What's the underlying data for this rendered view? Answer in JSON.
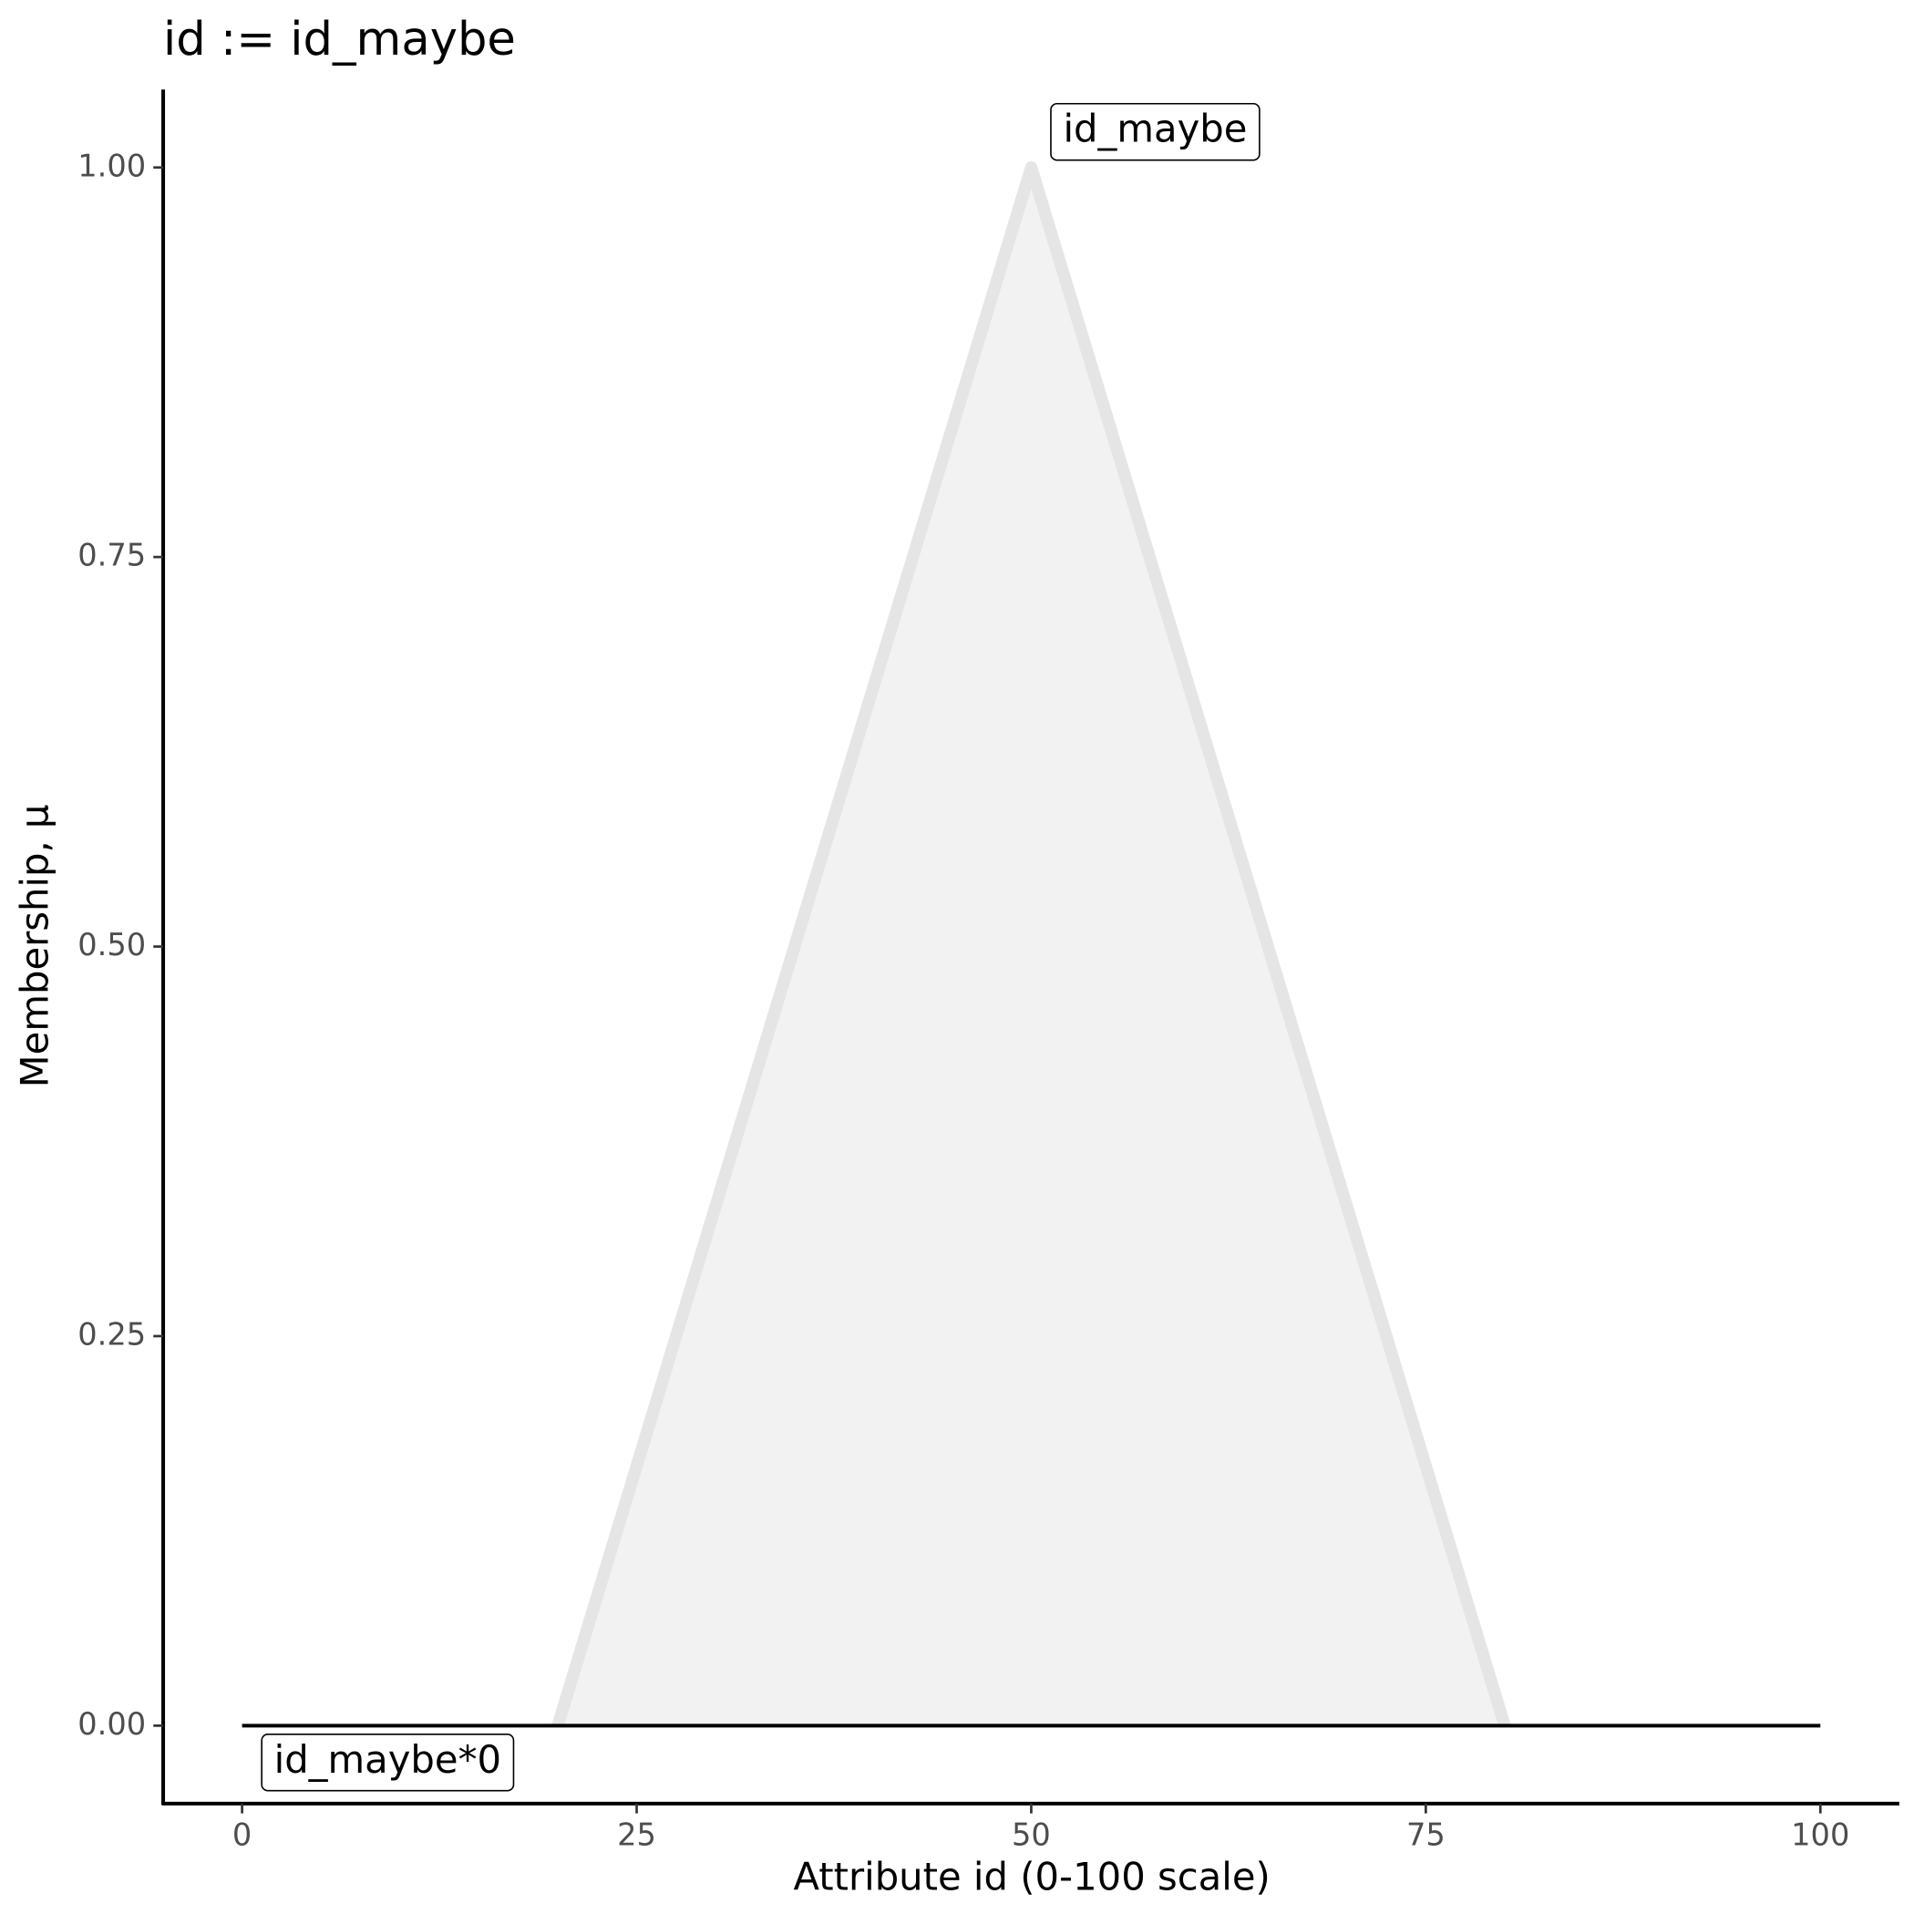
{
  "chart_data": {
    "type": "line",
    "title": "id := id_maybe",
    "x_label": "Attribute id (0-100 scale)",
    "y_label": "Membership, μ",
    "series": [
      {
        "name": "id_maybe",
        "color": "#e5e5e5",
        "fill": "#f2f2f2",
        "x": [
          20,
          50,
          80
        ],
        "values": [
          0,
          1,
          0
        ]
      },
      {
        "name": "id_maybe*0",
        "color": "#000000",
        "x": [
          0,
          100
        ],
        "values": [
          0,
          0
        ]
      }
    ],
    "xlim": [
      -5,
      105
    ],
    "ylim": [
      -0.05,
      1.05
    ],
    "xticks": [
      0,
      25,
      50,
      75,
      100
    ],
    "yticks": [
      {
        "value": 0,
        "label": "0.00"
      },
      {
        "value": 0.25,
        "label": "0.25"
      },
      {
        "value": 0.5,
        "label": "0.50"
      },
      {
        "value": 0.75,
        "label": "0.75"
      },
      {
        "value": 1,
        "label": "1.00"
      }
    ],
    "grid": false
  }
}
